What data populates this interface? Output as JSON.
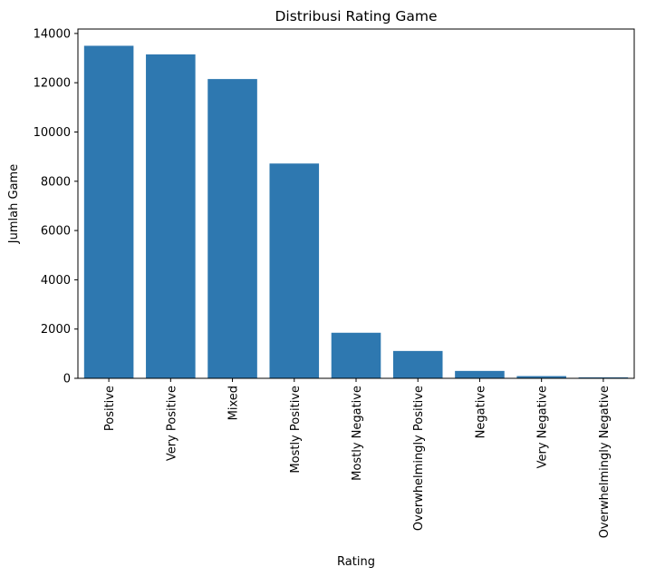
{
  "chart_data": {
    "type": "bar",
    "title": "Distribusi Rating Game",
    "xlabel": "Rating",
    "ylabel": "Jumlah Game",
    "categories": [
      "Positive",
      "Very Positive",
      "Mixed",
      "Mostly Positive",
      "Mostly Negative",
      "Overwhelmingly Positive",
      "Negative",
      "Very Negative",
      "Overwhelmingly Negative"
    ],
    "values": [
      13500,
      13150,
      12150,
      8720,
      1850,
      1110,
      300,
      90,
      40
    ],
    "yticks": [
      0,
      2000,
      4000,
      6000,
      8000,
      10000,
      12000,
      14000
    ],
    "ylim": [
      0,
      14180
    ],
    "bar_color": "#2e78b0",
    "grid": false
  }
}
